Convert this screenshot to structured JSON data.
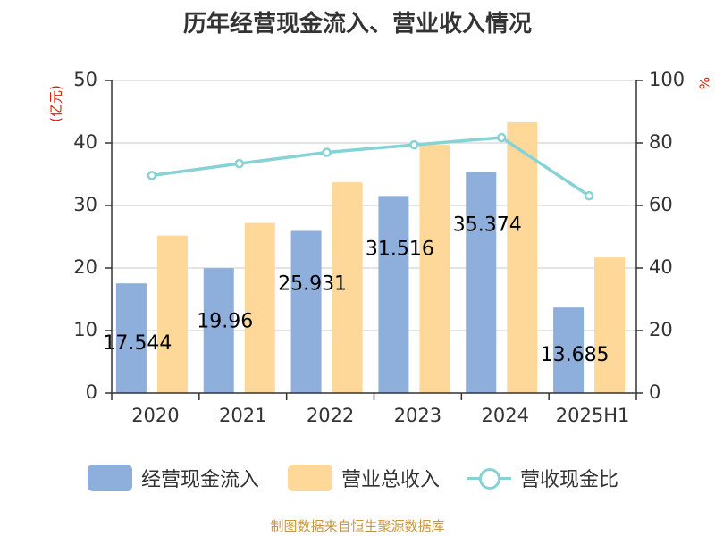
{
  "title": "历年经营现金流入、营业收入情况",
  "y_left_unit": "(亿元)",
  "y_right_unit": "%",
  "source": "制图数据来自恒生聚源数据库",
  "colors": {
    "cash_inflow": "#8eaedb",
    "revenue": "#fdd898",
    "ratio": "#86d2d5",
    "axis": "#333333",
    "grid": "#c8c8c8",
    "unit_red": "#d81e06"
  },
  "chart_data": {
    "type": "bar",
    "title": "历年经营现金流入、营业收入情况",
    "categories": [
      "2020",
      "2021",
      "2022",
      "2023",
      "2024",
      "2025H1"
    ],
    "series": [
      {
        "name": "经营现金流入",
        "type": "bar",
        "axis": "left",
        "values": [
          17.544,
          19.96,
          25.931,
          31.516,
          35.374,
          13.685
        ],
        "labels": [
          "17.544",
          "19.96",
          "25.931",
          "31.516",
          "35.374",
          "13.685"
        ]
      },
      {
        "name": "营业总收入",
        "type": "bar",
        "axis": "left",
        "values": [
          25.2,
          27.2,
          33.7,
          39.7,
          43.3,
          21.7
        ]
      },
      {
        "name": "营收现金比",
        "type": "line",
        "axis": "right",
        "values": [
          69.6,
          73.4,
          77.0,
          79.4,
          81.7,
          63.1
        ]
      }
    ],
    "ylim_left": [
      0,
      50
    ],
    "yticks_left": [
      "0",
      "10",
      "20",
      "30",
      "40",
      "50"
    ],
    "ylim_right": [
      0,
      100
    ],
    "yticks_right": [
      "0",
      "20",
      "40",
      "60",
      "80",
      "100"
    ],
    "ylabel_left": "(亿元)",
    "ylabel_right": "%",
    "grid": true,
    "legend_position": "bottom"
  }
}
